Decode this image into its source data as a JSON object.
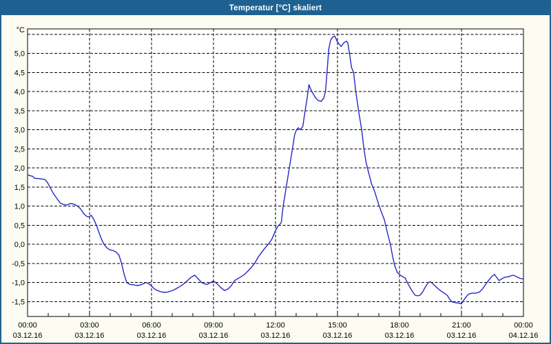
{
  "window": {
    "title": "Temperatur [°C] skaliert"
  },
  "colors": {
    "titlebar_bg": "#1e6191",
    "titlebar_text": "#ffffff",
    "window_bg": "#fcfcf2",
    "plot_bg": "#ffffff",
    "grid": "#000000",
    "axis": "#000000",
    "label_text": "#000000",
    "line": "#2525c4"
  },
  "chart_data": {
    "type": "line",
    "title": "Temperatur [°C] skaliert",
    "grid": "dashed",
    "legend_position": "none",
    "y_axis": {
      "unit": "°C",
      "ylim": [
        -1.89,
        5.64
      ],
      "gridline_step": 0.5,
      "extra_unlabeled_gridlines": [
        5.5
      ],
      "ticks": [
        {
          "v": 5.0,
          "label": "5,0"
        },
        {
          "v": 4.5,
          "label": "4,5"
        },
        {
          "v": 4.0,
          "label": "4,0"
        },
        {
          "v": 3.5,
          "label": "3,5"
        },
        {
          "v": 3.0,
          "label": "3,0"
        },
        {
          "v": 2.5,
          "label": "2,5"
        },
        {
          "v": 2.0,
          "label": "2,0"
        },
        {
          "v": 1.5,
          "label": "1,5"
        },
        {
          "v": 1.0,
          "label": "1,0"
        },
        {
          "v": 0.5,
          "label": "0,5"
        },
        {
          "v": 0.0,
          "label": "0,0"
        },
        {
          "v": -0.5,
          "label": "-0,5"
        },
        {
          "v": -1.0,
          "label": "-1,0"
        },
        {
          "v": -1.5,
          "label": "-1,5"
        }
      ]
    },
    "x_axis": {
      "range_hours": [
        0,
        24
      ],
      "minor_tick_every_hours": 1,
      "ticks": [
        {
          "h": 0,
          "time": "00:00",
          "date": "03.12.16"
        },
        {
          "h": 3,
          "time": "03:00",
          "date": "03.12.16"
        },
        {
          "h": 6,
          "time": "06:00",
          "date": "03.12.16"
        },
        {
          "h": 9,
          "time": "09:00",
          "date": "03.12.16"
        },
        {
          "h": 12,
          "time": "12:00",
          "date": "03.12.16"
        },
        {
          "h": 15,
          "time": "15:00",
          "date": "03.12.16"
        },
        {
          "h": 18,
          "time": "18:00",
          "date": "03.12.16"
        },
        {
          "h": 21,
          "time": "21:00",
          "date": "03.12.16"
        },
        {
          "h": 24,
          "time": "00:00",
          "date": "04.12.16"
        }
      ]
    },
    "series": [
      {
        "name": "Temperatur skaliert",
        "color": "#2525c4",
        "points_hour_degC": [
          [
            0.0,
            1.82
          ],
          [
            0.1,
            1.8
          ],
          [
            0.25,
            1.78
          ],
          [
            0.33,
            1.73
          ],
          [
            0.5,
            1.72
          ],
          [
            0.67,
            1.71
          ],
          [
            0.83,
            1.7
          ],
          [
            0.95,
            1.63
          ],
          [
            1.08,
            1.5
          ],
          [
            1.25,
            1.33
          ],
          [
            1.42,
            1.2
          ],
          [
            1.58,
            1.08
          ],
          [
            1.7,
            1.05
          ],
          [
            1.83,
            1.03
          ],
          [
            1.95,
            1.04
          ],
          [
            2.08,
            1.07
          ],
          [
            2.25,
            1.05
          ],
          [
            2.42,
            1.0
          ],
          [
            2.58,
            0.92
          ],
          [
            2.72,
            0.8
          ],
          [
            2.87,
            0.73
          ],
          [
            3.0,
            0.72
          ],
          [
            3.08,
            0.76
          ],
          [
            3.2,
            0.66
          ],
          [
            3.33,
            0.5
          ],
          [
            3.45,
            0.32
          ],
          [
            3.58,
            0.13
          ],
          [
            3.7,
            0.0
          ],
          [
            3.83,
            -0.09
          ],
          [
            3.97,
            -0.14
          ],
          [
            4.12,
            -0.16
          ],
          [
            4.28,
            -0.2
          ],
          [
            4.42,
            -0.28
          ],
          [
            4.55,
            -0.5
          ],
          [
            4.67,
            -0.78
          ],
          [
            4.8,
            -1.0
          ],
          [
            4.95,
            -1.05
          ],
          [
            5.12,
            -1.06
          ],
          [
            5.28,
            -1.08
          ],
          [
            5.42,
            -1.07
          ],
          [
            5.58,
            -1.04
          ],
          [
            5.72,
            -1.0
          ],
          [
            5.87,
            -1.03
          ],
          [
            6.03,
            -1.11
          ],
          [
            6.17,
            -1.18
          ],
          [
            6.33,
            -1.22
          ],
          [
            6.5,
            -1.25
          ],
          [
            6.7,
            -1.26
          ],
          [
            6.9,
            -1.23
          ],
          [
            7.1,
            -1.19
          ],
          [
            7.3,
            -1.13
          ],
          [
            7.5,
            -1.06
          ],
          [
            7.7,
            -0.97
          ],
          [
            7.9,
            -0.87
          ],
          [
            8.08,
            -0.81
          ],
          [
            8.25,
            -0.9
          ],
          [
            8.42,
            -1.0
          ],
          [
            8.58,
            -1.04
          ],
          [
            8.7,
            -1.05
          ],
          [
            8.83,
            -1.01
          ],
          [
            9.0,
            -0.96
          ],
          [
            9.17,
            -1.03
          ],
          [
            9.33,
            -1.12
          ],
          [
            9.53,
            -1.21
          ],
          [
            9.7,
            -1.17
          ],
          [
            9.87,
            -1.08
          ],
          [
            10.0,
            -0.96
          ],
          [
            10.17,
            -0.9
          ],
          [
            10.33,
            -0.85
          ],
          [
            10.5,
            -0.79
          ],
          [
            10.67,
            -0.7
          ],
          [
            10.83,
            -0.61
          ],
          [
            11.0,
            -0.49
          ],
          [
            11.17,
            -0.33
          ],
          [
            11.33,
            -0.21
          ],
          [
            11.47,
            -0.11
          ],
          [
            11.6,
            -0.03
          ],
          [
            11.72,
            0.05
          ],
          [
            11.83,
            0.14
          ],
          [
            11.93,
            0.27
          ],
          [
            12.0,
            0.36
          ],
          [
            12.1,
            0.46
          ],
          [
            12.2,
            0.52
          ],
          [
            12.28,
            0.57
          ],
          [
            12.37,
            1.0
          ],
          [
            12.52,
            1.5
          ],
          [
            12.67,
            2.0
          ],
          [
            12.82,
            2.5
          ],
          [
            12.93,
            2.88
          ],
          [
            13.02,
            3.0
          ],
          [
            13.1,
            3.05
          ],
          [
            13.2,
            3.0
          ],
          [
            13.32,
            3.08
          ],
          [
            13.42,
            3.45
          ],
          [
            13.53,
            3.82
          ],
          [
            13.62,
            4.18
          ],
          [
            13.67,
            4.1
          ],
          [
            13.78,
            3.98
          ],
          [
            13.92,
            3.85
          ],
          [
            14.05,
            3.77
          ],
          [
            14.2,
            3.74
          ],
          [
            14.33,
            3.82
          ],
          [
            14.42,
            4.0
          ],
          [
            14.5,
            4.55
          ],
          [
            14.58,
            5.12
          ],
          [
            14.67,
            5.35
          ],
          [
            14.77,
            5.43
          ],
          [
            14.87,
            5.45
          ],
          [
            14.97,
            5.33
          ],
          [
            15.08,
            5.24
          ],
          [
            15.18,
            5.18
          ],
          [
            15.3,
            5.27
          ],
          [
            15.42,
            5.32
          ],
          [
            15.5,
            5.27
          ],
          [
            15.58,
            5.0
          ],
          [
            15.68,
            4.63
          ],
          [
            15.78,
            4.5
          ],
          [
            15.88,
            4.02
          ],
          [
            16.02,
            3.5
          ],
          [
            16.17,
            3.0
          ],
          [
            16.28,
            2.5
          ],
          [
            16.38,
            2.15
          ],
          [
            16.52,
            1.85
          ],
          [
            16.65,
            1.58
          ],
          [
            16.8,
            1.38
          ],
          [
            16.97,
            1.08
          ],
          [
            17.1,
            0.88
          ],
          [
            17.27,
            0.64
          ],
          [
            17.43,
            0.27
          ],
          [
            17.57,
            -0.03
          ],
          [
            17.67,
            -0.33
          ],
          [
            17.78,
            -0.58
          ],
          [
            17.9,
            -0.74
          ],
          [
            18.0,
            -0.79
          ],
          [
            18.13,
            -0.84
          ],
          [
            18.27,
            -0.88
          ],
          [
            18.38,
            -1.0
          ],
          [
            18.5,
            -1.12
          ],
          [
            18.63,
            -1.24
          ],
          [
            18.75,
            -1.33
          ],
          [
            18.88,
            -1.35
          ],
          [
            19.0,
            -1.33
          ],
          [
            19.13,
            -1.24
          ],
          [
            19.27,
            -1.1
          ],
          [
            19.4,
            -1.0
          ],
          [
            19.5,
            -0.98
          ],
          [
            19.65,
            -1.05
          ],
          [
            19.82,
            -1.14
          ],
          [
            20.0,
            -1.22
          ],
          [
            20.17,
            -1.28
          ],
          [
            20.32,
            -1.34
          ],
          [
            20.43,
            -1.44
          ],
          [
            20.55,
            -1.51
          ],
          [
            20.72,
            -1.53
          ],
          [
            20.87,
            -1.54
          ],
          [
            21.0,
            -1.56
          ],
          [
            21.1,
            -1.47
          ],
          [
            21.22,
            -1.38
          ],
          [
            21.33,
            -1.31
          ],
          [
            21.5,
            -1.28
          ],
          [
            21.7,
            -1.28
          ],
          [
            21.87,
            -1.25
          ],
          [
            22.03,
            -1.16
          ],
          [
            22.18,
            -1.04
          ],
          [
            22.32,
            -0.94
          ],
          [
            22.47,
            -0.84
          ],
          [
            22.6,
            -0.79
          ],
          [
            22.72,
            -0.88
          ],
          [
            22.82,
            -0.95
          ],
          [
            22.97,
            -0.9
          ],
          [
            23.12,
            -0.86
          ],
          [
            23.27,
            -0.85
          ],
          [
            23.42,
            -0.82
          ],
          [
            23.52,
            -0.81
          ],
          [
            23.67,
            -0.85
          ],
          [
            23.83,
            -0.89
          ],
          [
            24.0,
            -0.91
          ]
        ]
      }
    ]
  }
}
